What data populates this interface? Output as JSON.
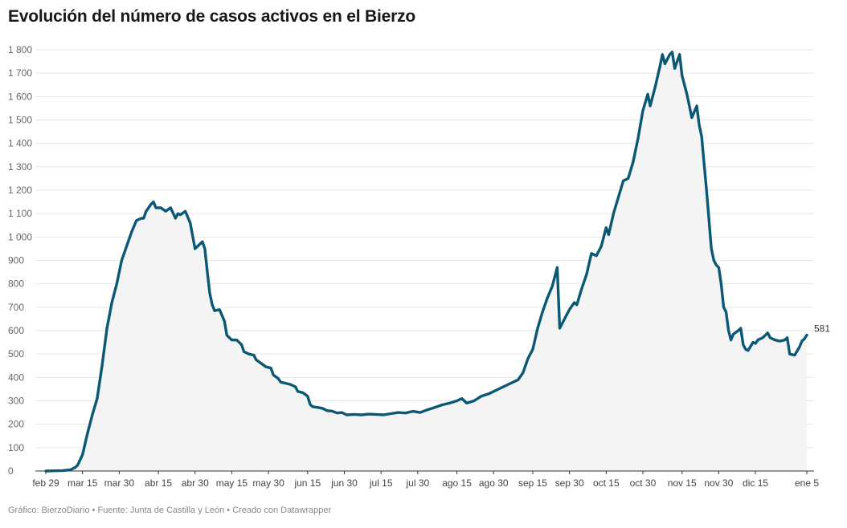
{
  "title": "Evolución del número de casos activos en el Bierzo",
  "footer": {
    "credit": "Gráfico: BierzoDiario",
    "source": "Fuente: Junta de Castilla y León",
    "tool": "Creado con Datawrapper",
    "sep": "•"
  },
  "colors": {
    "line": "#0b5875",
    "area": "#f4f4f5",
    "grid": "#e6e6e6",
    "axis": "#333333"
  },
  "chart_data": {
    "type": "area",
    "xlabel": "",
    "ylabel": "",
    "ylim": [
      0,
      1800
    ],
    "grid": true,
    "x_tick_labels": [
      "feb 29",
      "mar 15",
      "mar 30",
      "abr 15",
      "abr 30",
      "may 15",
      "may 30",
      "jun 15",
      "jun 30",
      "jul 15",
      "jul 30",
      "ago 15",
      "ago 30",
      "sep 15",
      "sep 30",
      "oct 15",
      "oct 30",
      "nov 15",
      "nov 30",
      "dic 15",
      "ene 5"
    ],
    "y_ticks": [
      0,
      100,
      200,
      300,
      400,
      500,
      600,
      700,
      800,
      900,
      1000,
      1100,
      1200,
      1300,
      1400,
      1500,
      1600,
      1700,
      1800
    ],
    "y_tick_labels": [
      "0",
      "100",
      "200",
      "300",
      "400",
      "500",
      "600",
      "700",
      "800",
      "900",
      "1 000",
      "1 100",
      "1 200",
      "1 300",
      "1 400",
      "1 500",
      "1 600",
      "1 700",
      "1 800"
    ],
    "end_label": "581",
    "series": [
      {
        "values": [
          [
            "2020-02-29",
            0
          ],
          [
            "2020-03-07",
            2
          ],
          [
            "2020-03-10",
            5
          ],
          [
            "2020-03-12",
            15
          ],
          [
            "2020-03-13",
            25
          ],
          [
            "2020-03-15",
            70
          ],
          [
            "2020-03-17",
            160
          ],
          [
            "2020-03-19",
            240
          ],
          [
            "2020-03-21",
            310
          ],
          [
            "2020-03-23",
            450
          ],
          [
            "2020-03-25",
            610
          ],
          [
            "2020-03-27",
            720
          ],
          [
            "2020-03-29",
            800
          ],
          [
            "2020-03-31",
            900
          ],
          [
            "2020-04-02",
            960
          ],
          [
            "2020-04-04",
            1020
          ],
          [
            "2020-04-06",
            1070
          ],
          [
            "2020-04-08",
            1080
          ],
          [
            "2020-04-09",
            1080
          ],
          [
            "2020-04-10",
            1110
          ],
          [
            "2020-04-12",
            1140
          ],
          [
            "2020-04-13",
            1150
          ],
          [
            "2020-04-14",
            1125
          ],
          [
            "2020-04-16",
            1125
          ],
          [
            "2020-04-18",
            1110
          ],
          [
            "2020-04-20",
            1125
          ],
          [
            "2020-04-22",
            1080
          ],
          [
            "2020-04-23",
            1100
          ],
          [
            "2020-04-24",
            1095
          ],
          [
            "2020-04-26",
            1110
          ],
          [
            "2020-04-28",
            1060
          ],
          [
            "2020-04-30",
            950
          ],
          [
            "2020-05-02",
            970
          ],
          [
            "2020-05-03",
            980
          ],
          [
            "2020-05-04",
            950
          ],
          [
            "2020-05-05",
            850
          ],
          [
            "2020-05-06",
            760
          ],
          [
            "2020-05-07",
            710
          ],
          [
            "2020-05-08",
            685
          ],
          [
            "2020-05-10",
            690
          ],
          [
            "2020-05-12",
            640
          ],
          [
            "2020-05-13",
            580
          ],
          [
            "2020-05-15",
            560
          ],
          [
            "2020-05-17",
            560
          ],
          [
            "2020-05-19",
            540
          ],
          [
            "2020-05-20",
            510
          ],
          [
            "2020-05-22",
            500
          ],
          [
            "2020-05-24",
            495
          ],
          [
            "2020-05-25",
            475
          ],
          [
            "2020-05-27",
            460
          ],
          [
            "2020-05-29",
            445
          ],
          [
            "2020-05-31",
            440
          ],
          [
            "2020-06-01",
            410
          ],
          [
            "2020-06-03",
            395
          ],
          [
            "2020-06-04",
            380
          ],
          [
            "2020-06-06",
            375
          ],
          [
            "2020-06-08",
            370
          ],
          [
            "2020-06-10",
            360
          ],
          [
            "2020-06-11",
            340
          ],
          [
            "2020-06-13",
            335
          ],
          [
            "2020-06-15",
            320
          ],
          [
            "2020-06-16",
            285
          ],
          [
            "2020-06-17",
            275
          ],
          [
            "2020-06-19",
            272
          ],
          [
            "2020-06-21",
            268
          ],
          [
            "2020-06-23",
            258
          ],
          [
            "2020-06-25",
            256
          ],
          [
            "2020-06-27",
            248
          ],
          [
            "2020-06-29",
            250
          ],
          [
            "2020-07-01",
            240
          ],
          [
            "2020-07-04",
            242
          ],
          [
            "2020-07-07",
            240
          ],
          [
            "2020-07-10",
            243
          ],
          [
            "2020-07-13",
            242
          ],
          [
            "2020-07-16",
            240
          ],
          [
            "2020-07-19",
            245
          ],
          [
            "2020-07-22",
            250
          ],
          [
            "2020-07-25",
            248
          ],
          [
            "2020-07-28",
            255
          ],
          [
            "2020-07-31",
            250
          ],
          [
            "2020-08-03",
            262
          ],
          [
            "2020-08-06",
            272
          ],
          [
            "2020-08-09",
            283
          ],
          [
            "2020-08-12",
            290
          ],
          [
            "2020-08-15",
            300
          ],
          [
            "2020-08-17",
            310
          ],
          [
            "2020-08-19",
            290
          ],
          [
            "2020-08-22",
            300
          ],
          [
            "2020-08-25",
            320
          ],
          [
            "2020-08-28",
            330
          ],
          [
            "2020-08-31",
            345
          ],
          [
            "2020-09-03",
            360
          ],
          [
            "2020-09-06",
            375
          ],
          [
            "2020-09-09",
            390
          ],
          [
            "2020-09-11",
            420
          ],
          [
            "2020-09-13",
            480
          ],
          [
            "2020-09-15",
            520
          ],
          [
            "2020-09-17",
            610
          ],
          [
            "2020-09-19",
            680
          ],
          [
            "2020-09-21",
            740
          ],
          [
            "2020-09-23",
            790
          ],
          [
            "2020-09-25",
            870
          ],
          [
            "2020-09-26",
            610
          ],
          [
            "2020-09-28",
            650
          ],
          [
            "2020-09-30",
            690
          ],
          [
            "2020-10-02",
            720
          ],
          [
            "2020-10-03",
            710
          ],
          [
            "2020-10-05",
            780
          ],
          [
            "2020-10-07",
            840
          ],
          [
            "2020-10-09",
            930
          ],
          [
            "2020-10-11",
            920
          ],
          [
            "2020-10-13",
            960
          ],
          [
            "2020-10-15",
            1040
          ],
          [
            "2020-10-16",
            1010
          ],
          [
            "2020-10-18",
            1100
          ],
          [
            "2020-10-20",
            1170
          ],
          [
            "2020-10-22",
            1240
          ],
          [
            "2020-10-24",
            1250
          ],
          [
            "2020-10-26",
            1320
          ],
          [
            "2020-10-28",
            1420
          ],
          [
            "2020-10-30",
            1540
          ],
          [
            "2020-11-01",
            1610
          ],
          [
            "2020-11-02",
            1560
          ],
          [
            "2020-11-04",
            1640
          ],
          [
            "2020-11-06",
            1730
          ],
          [
            "2020-11-07",
            1780
          ],
          [
            "2020-11-08",
            1740
          ],
          [
            "2020-11-10",
            1780
          ],
          [
            "2020-11-11",
            1790
          ],
          [
            "2020-11-12",
            1720
          ],
          [
            "2020-11-14",
            1780
          ],
          [
            "2020-11-15",
            1690
          ],
          [
            "2020-11-17",
            1610
          ],
          [
            "2020-11-19",
            1510
          ],
          [
            "2020-11-21",
            1560
          ],
          [
            "2020-11-22",
            1480
          ],
          [
            "2020-11-23",
            1430
          ],
          [
            "2020-11-25",
            1200
          ],
          [
            "2020-11-27",
            950
          ],
          [
            "2020-11-28",
            900
          ],
          [
            "2020-11-29",
            880
          ],
          [
            "2020-11-30",
            870
          ],
          [
            "2020-12-01",
            800
          ],
          [
            "2020-12-02",
            700
          ],
          [
            "2020-12-03",
            680
          ],
          [
            "2020-12-04",
            600
          ],
          [
            "2020-12-05",
            560
          ],
          [
            "2020-12-06",
            585
          ],
          [
            "2020-12-08",
            600
          ],
          [
            "2020-12-09",
            610
          ],
          [
            "2020-12-10",
            540
          ],
          [
            "2020-12-11",
            520
          ],
          [
            "2020-12-12",
            515
          ],
          [
            "2020-12-14",
            550
          ],
          [
            "2020-12-15",
            545
          ],
          [
            "2020-12-16",
            560
          ],
          [
            "2020-12-18",
            570
          ],
          [
            "2020-12-20",
            590
          ],
          [
            "2020-12-21",
            570
          ],
          [
            "2020-12-23",
            560
          ],
          [
            "2020-12-25",
            555
          ],
          [
            "2020-12-27",
            560
          ],
          [
            "2020-12-28",
            570
          ],
          [
            "2020-12-29",
            500
          ],
          [
            "2020-12-31",
            495
          ],
          [
            "2021-01-02",
            530
          ],
          [
            "2021-01-03",
            555
          ],
          [
            "2021-01-04",
            565
          ],
          [
            "2021-01-05",
            581
          ]
        ]
      }
    ]
  }
}
